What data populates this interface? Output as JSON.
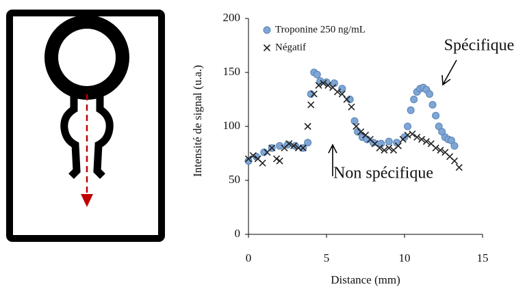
{
  "chart_data": {
    "type": "scatter",
    "xlabel": "Distance (mm)",
    "ylabel": "Intensité de signal (u.a.)",
    "xlim": [
      0,
      15
    ],
    "xticks": [
      0,
      5,
      10,
      15
    ],
    "ylim": [
      0,
      200
    ],
    "yticks": [
      0,
      50,
      100,
      150,
      200
    ],
    "legend": "upper left",
    "annotations": [
      "Spécifique",
      "Non spécifique"
    ],
    "series": [
      {
        "name": "Troponine 250 ng/mL",
        "color": "#7ea6d6",
        "marker": "circle",
        "x": [
          0,
          0.5,
          1,
          1.5,
          2,
          2.5,
          3,
          3.5,
          3.8,
          4,
          4.2,
          4.4,
          4.6,
          5,
          5.5,
          6,
          6.5,
          6.8,
          7,
          7.3,
          7.6,
          8,
          8.5,
          9,
          9.5,
          10,
          10.2,
          10.4,
          10.6,
          10.8,
          11,
          11.2,
          11.4,
          11.6,
          11.8,
          12,
          12.2,
          12.4,
          12.6,
          12.8,
          13,
          13.2
        ],
        "values": [
          68,
          72,
          76,
          80,
          82,
          83,
          82,
          80,
          85,
          130,
          150,
          148,
          142,
          141,
          140,
          135,
          125,
          105,
          95,
          90,
          88,
          85,
          84,
          86,
          85,
          90,
          100,
          115,
          125,
          132,
          135,
          136,
          134,
          130,
          120,
          110,
          100,
          95,
          90,
          88,
          87,
          82
        ]
      },
      {
        "name": "Négatif",
        "color": "#222222",
        "marker": "cross",
        "x": [
          0,
          0.3,
          0.6,
          0.9,
          1.2,
          1.5,
          1.8,
          2,
          2.3,
          2.6,
          2.9,
          3.2,
          3.5,
          3.8,
          4,
          4.2,
          4.5,
          4.8,
          5.1,
          5.4,
          5.7,
          6,
          6.3,
          6.6,
          6.9,
          7.2,
          7.5,
          7.8,
          8.1,
          8.4,
          8.7,
          9,
          9.3,
          9.6,
          9.9,
          10.2,
          10.5,
          10.8,
          11.1,
          11.4,
          11.7,
          12,
          12.3,
          12.6,
          12.9,
          13.2,
          13.5
        ],
        "values": [
          70,
          73,
          70,
          66,
          76,
          80,
          70,
          68,
          80,
          84,
          82,
          80,
          80,
          100,
          120,
          130,
          138,
          140,
          138,
          136,
          132,
          130,
          125,
          118,
          100,
          95,
          92,
          88,
          84,
          80,
          78,
          80,
          78,
          82,
          88,
          92,
          93,
          90,
          88,
          86,
          84,
          80,
          78,
          76,
          72,
          68,
          62
        ]
      }
    ]
  }
}
